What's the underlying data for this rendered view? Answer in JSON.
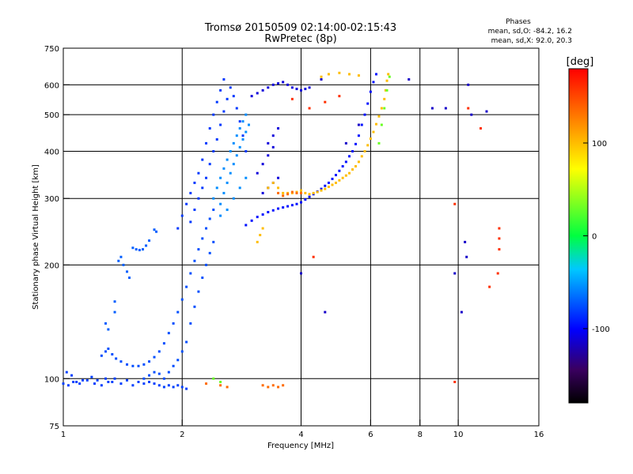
{
  "chart_data": {
    "type": "scatter",
    "title": "Tromsø 20150509 02:14:00-02:15:43",
    "subtitle": "RwPretec (8p)",
    "xlabel": "Frequency [MHz]",
    "ylabel": "Stationary phase Virtual Height [km]",
    "x_scale": "log",
    "y_scale": "log",
    "xlim": [
      1,
      16
    ],
    "ylim": [
      75,
      750
    ],
    "x_ticks": [
      1,
      2,
      4,
      6,
      8,
      10,
      16
    ],
    "x_tick_labels": [
      "1",
      "2",
      "4",
      "6",
      "8",
      "10",
      "16"
    ],
    "y_ticks": [
      75,
      100,
      200,
      300,
      400,
      500,
      600,
      750
    ],
    "y_tick_labels": [
      "75",
      "100",
      "200",
      "300",
      "400",
      "500",
      "600",
      "750"
    ],
    "x_gridlines": [
      2,
      4,
      6,
      8,
      10
    ],
    "y_gridlines": [
      100,
      200,
      300,
      400,
      500,
      600
    ],
    "grid": true,
    "phase_stats": {
      "heading": "Phases",
      "line_o": "mean, sd,O: -84.2, 16.2",
      "line_x": "mean, sd,X:  92.0, 20.3"
    },
    "colorbar": {
      "label": "[deg]",
      "range": [
        -180,
        180
      ],
      "ticks": [
        100,
        0,
        -100
      ],
      "tick_labels": [
        "100",
        "0",
        "-100"
      ],
      "colormap": "rainbow: black-purple-blue-cyan-green-yellow-orange-red"
    },
    "series": [
      {
        "phase": -80,
        "points": [
          [
            1.0,
            97
          ],
          [
            1.03,
            96
          ],
          [
            1.06,
            98
          ],
          [
            1.1,
            97
          ],
          [
            1.15,
            99
          ],
          [
            1.2,
            97
          ],
          [
            1.25,
            96
          ],
          [
            1.3,
            98
          ],
          [
            1.35,
            100
          ],
          [
            1.4,
            97
          ],
          [
            1.45,
            99
          ],
          [
            1.5,
            96
          ],
          [
            1.55,
            98
          ],
          [
            1.6,
            97
          ],
          [
            1.65,
            98
          ],
          [
            1.7,
            97
          ],
          [
            1.75,
            96
          ],
          [
            1.8,
            95
          ],
          [
            1.85,
            96
          ],
          [
            1.9,
            95
          ],
          [
            1.95,
            96
          ],
          [
            2.0,
            95
          ],
          [
            2.05,
            94
          ],
          [
            1.02,
            104
          ],
          [
            1.05,
            102
          ],
          [
            1.08,
            98
          ],
          [
            1.12,
            99
          ],
          [
            1.18,
            101
          ],
          [
            1.22,
            99
          ],
          [
            1.28,
            100
          ],
          [
            1.33,
            98
          ]
        ]
      },
      {
        "phase": -75,
        "points": [
          [
            1.25,
            115
          ],
          [
            1.28,
            118
          ],
          [
            1.3,
            120
          ],
          [
            1.33,
            116
          ],
          [
            1.36,
            113
          ],
          [
            1.4,
            111
          ],
          [
            1.45,
            109
          ],
          [
            1.5,
            108
          ],
          [
            1.55,
            108
          ],
          [
            1.6,
            109
          ],
          [
            1.65,
            111
          ],
          [
            1.7,
            114
          ],
          [
            1.75,
            118
          ],
          [
            1.8,
            124
          ],
          [
            1.85,
            132
          ],
          [
            1.9,
            140
          ],
          [
            1.95,
            150
          ],
          [
            2.0,
            162
          ],
          [
            2.05,
            175
          ],
          [
            2.1,
            190
          ],
          [
            2.15,
            205
          ],
          [
            2.2,
            220
          ],
          [
            2.25,
            235
          ],
          [
            2.3,
            250
          ],
          [
            2.35,
            265
          ],
          [
            2.4,
            280
          ],
          [
            1.6,
            100
          ],
          [
            1.65,
            102
          ],
          [
            1.7,
            104
          ],
          [
            1.75,
            103
          ],
          [
            1.8,
            100
          ],
          [
            1.85,
            104
          ],
          [
            1.9,
            108
          ],
          [
            1.95,
            112
          ],
          [
            2.0,
            118
          ],
          [
            2.05,
            125
          ],
          [
            2.1,
            140
          ],
          [
            2.15,
            155
          ],
          [
            2.2,
            170
          ],
          [
            2.25,
            185
          ],
          [
            2.3,
            200
          ],
          [
            2.35,
            215
          ],
          [
            2.4,
            230
          ]
        ]
      },
      {
        "phase": -70,
        "points": [
          [
            1.38,
            205
          ],
          [
            1.4,
            210
          ],
          [
            1.42,
            200
          ],
          [
            1.45,
            192
          ],
          [
            1.47,
            185
          ],
          [
            1.5,
            222
          ],
          [
            1.53,
            220
          ],
          [
            1.56,
            219
          ],
          [
            1.59,
            220
          ],
          [
            1.62,
            225
          ],
          [
            1.65,
            232
          ],
          [
            1.7,
            248
          ],
          [
            1.72,
            245
          ],
          [
            1.35,
            160
          ],
          [
            1.3,
            135
          ],
          [
            1.28,
            140
          ],
          [
            1.35,
            150
          ]
        ]
      },
      {
        "phase": -82,
        "points": [
          [
            1.95,
            250
          ],
          [
            2.0,
            270
          ],
          [
            2.05,
            290
          ],
          [
            2.1,
            310
          ],
          [
            2.15,
            330
          ],
          [
            2.2,
            350
          ],
          [
            2.25,
            380
          ],
          [
            2.3,
            420
          ],
          [
            2.35,
            460
          ],
          [
            2.4,
            500
          ],
          [
            2.45,
            540
          ],
          [
            2.5,
            580
          ],
          [
            2.55,
            620
          ],
          [
            2.1,
            260
          ],
          [
            2.15,
            280
          ],
          [
            2.2,
            300
          ],
          [
            2.25,
            320
          ],
          [
            2.3,
            340
          ],
          [
            2.35,
            370
          ],
          [
            2.4,
            400
          ],
          [
            2.45,
            430
          ],
          [
            2.5,
            470
          ],
          [
            2.55,
            510
          ],
          [
            2.6,
            550
          ],
          [
            2.65,
            590
          ],
          [
            2.7,
            560
          ],
          [
            2.75,
            520
          ],
          [
            2.8,
            480
          ],
          [
            2.85,
            440
          ],
          [
            2.9,
            400
          ]
        ]
      },
      {
        "phase": -55,
        "points": [
          [
            2.4,
            300
          ],
          [
            2.45,
            320
          ],
          [
            2.5,
            340
          ],
          [
            2.55,
            360
          ],
          [
            2.6,
            380
          ],
          [
            2.65,
            400
          ],
          [
            2.7,
            420
          ],
          [
            2.75,
            440
          ],
          [
            2.8,
            460
          ],
          [
            2.85,
            480
          ],
          [
            2.9,
            500
          ],
          [
            2.5,
            290
          ],
          [
            2.55,
            310
          ],
          [
            2.6,
            330
          ],
          [
            2.65,
            350
          ],
          [
            2.7,
            370
          ],
          [
            2.75,
            390
          ],
          [
            2.8,
            410
          ],
          [
            2.85,
            430
          ],
          [
            2.9,
            450
          ],
          [
            2.95,
            470
          ],
          [
            2.5,
            270
          ],
          [
            2.6,
            280
          ],
          [
            2.7,
            300
          ],
          [
            2.8,
            320
          ],
          [
            2.9,
            340
          ]
        ]
      },
      {
        "phase": -95,
        "points": [
          [
            2.9,
            255
          ],
          [
            3.0,
            262
          ],
          [
            3.1,
            268
          ],
          [
            3.2,
            272
          ],
          [
            3.3,
            276
          ],
          [
            3.4,
            279
          ],
          [
            3.5,
            282
          ],
          [
            3.6,
            284
          ],
          [
            3.7,
            286
          ],
          [
            3.8,
            288
          ],
          [
            3.9,
            290
          ],
          [
            4.0,
            293
          ],
          [
            4.1,
            298
          ],
          [
            4.2,
            303
          ],
          [
            4.3,
            308
          ],
          [
            4.4,
            313
          ],
          [
            4.5,
            318
          ],
          [
            4.6,
            324
          ],
          [
            4.7,
            330
          ],
          [
            4.8,
            338
          ],
          [
            4.9,
            346
          ],
          [
            5.0,
            355
          ],
          [
            5.1,
            365
          ],
          [
            5.2,
            375
          ],
          [
            5.3,
            388
          ],
          [
            5.4,
            400
          ],
          [
            5.5,
            418
          ],
          [
            5.6,
            440
          ],
          [
            5.7,
            470
          ],
          [
            5.8,
            500
          ],
          [
            5.9,
            535
          ],
          [
            6.0,
            575
          ],
          [
            6.1,
            610
          ],
          [
            6.2,
            640
          ]
        ]
      },
      {
        "phase": -110,
        "points": [
          [
            3.0,
            560
          ],
          [
            3.1,
            570
          ],
          [
            3.2,
            580
          ],
          [
            3.3,
            590
          ],
          [
            3.4,
            600
          ],
          [
            3.5,
            605
          ],
          [
            3.6,
            610
          ],
          [
            3.7,
            600
          ],
          [
            3.8,
            590
          ],
          [
            3.9,
            585
          ],
          [
            4.0,
            580
          ],
          [
            4.1,
            585
          ],
          [
            4.2,
            590
          ],
          [
            3.2,
            310
          ],
          [
            3.3,
            320
          ],
          [
            3.4,
            330
          ],
          [
            3.5,
            340
          ],
          [
            3.3,
            420
          ],
          [
            3.4,
            440
          ],
          [
            3.5,
            460
          ],
          [
            3.1,
            350
          ],
          [
            3.2,
            370
          ],
          [
            3.3,
            390
          ],
          [
            3.4,
            410
          ]
        ]
      },
      {
        "phase": 100,
        "points": [
          [
            3.3,
            320
          ],
          [
            3.4,
            330
          ],
          [
            3.5,
            320
          ],
          [
            3.6,
            310
          ],
          [
            3.7,
            310
          ],
          [
            3.8,
            310
          ],
          [
            3.9,
            312
          ],
          [
            4.0,
            315
          ],
          [
            4.1,
            310
          ],
          [
            4.2,
            308
          ],
          [
            4.3,
            310
          ],
          [
            4.4,
            312
          ],
          [
            4.5,
            315
          ],
          [
            4.6,
            318
          ],
          [
            4.7,
            322
          ],
          [
            4.8,
            326
          ],
          [
            4.9,
            330
          ],
          [
            5.0,
            335
          ],
          [
            5.1,
            340
          ],
          [
            5.2,
            345
          ],
          [
            5.3,
            350
          ],
          [
            5.4,
            358
          ],
          [
            5.5,
            365
          ],
          [
            5.6,
            375
          ],
          [
            5.7,
            388
          ],
          [
            5.8,
            400
          ],
          [
            5.9,
            415
          ],
          [
            6.0,
            432
          ],
          [
            6.1,
            450
          ],
          [
            6.2,
            472
          ],
          [
            6.3,
            495
          ],
          [
            6.4,
            520
          ],
          [
            6.5,
            550
          ],
          [
            6.55,
            580
          ],
          [
            6.6,
            615
          ],
          [
            6.65,
            640
          ],
          [
            4.5,
            630
          ],
          [
            4.7,
            640
          ],
          [
            5.0,
            645
          ],
          [
            5.3,
            640
          ],
          [
            5.6,
            635
          ],
          [
            3.1,
            230
          ],
          [
            3.15,
            240
          ],
          [
            3.2,
            250
          ]
        ]
      },
      {
        "phase": 135,
        "points": [
          [
            3.5,
            310
          ],
          [
            3.6,
            305
          ],
          [
            3.7,
            308
          ],
          [
            3.8,
            312
          ],
          [
            3.9,
            310
          ],
          [
            4.0,
            310
          ],
          [
            3.2,
            96
          ],
          [
            3.3,
            95
          ],
          [
            3.4,
            96
          ],
          [
            3.5,
            95
          ],
          [
            3.6,
            96
          ],
          [
            2.3,
            97
          ],
          [
            2.5,
            96
          ],
          [
            2.6,
            95
          ]
        ]
      },
      {
        "phase": 30,
        "points": [
          [
            6.3,
            420
          ],
          [
            6.4,
            470
          ],
          [
            6.5,
            520
          ],
          [
            6.6,
            580
          ],
          [
            6.7,
            630
          ],
          [
            2.4,
            100
          ],
          [
            2.5,
            98
          ]
        ]
      },
      {
        "phase": 160,
        "points": [
          [
            4.2,
            520
          ],
          [
            4.6,
            540
          ],
          [
            5.0,
            560
          ],
          [
            9.8,
            290
          ],
          [
            9.8,
            98
          ],
          [
            12.7,
            220
          ],
          [
            12.7,
            250
          ],
          [
            12.7,
            235
          ],
          [
            12.0,
            175
          ],
          [
            10.6,
            520
          ],
          [
            11.4,
            460
          ],
          [
            12.6,
            190
          ],
          [
            3.8,
            550
          ],
          [
            4.3,
            210
          ]
        ]
      },
      {
        "phase": -115,
        "points": [
          [
            10.4,
            230
          ],
          [
            10.5,
            210
          ],
          [
            10.6,
            600
          ],
          [
            10.8,
            500
          ],
          [
            11.8,
            510
          ],
          [
            10.2,
            150
          ],
          [
            9.8,
            190
          ],
          [
            4.6,
            150
          ],
          [
            4.0,
            190
          ],
          [
            7.5,
            620
          ],
          [
            8.6,
            520
          ],
          [
            9.3,
            520
          ],
          [
            5.6,
            470
          ],
          [
            5.2,
            420
          ],
          [
            4.5,
            620
          ]
        ]
      }
    ]
  }
}
